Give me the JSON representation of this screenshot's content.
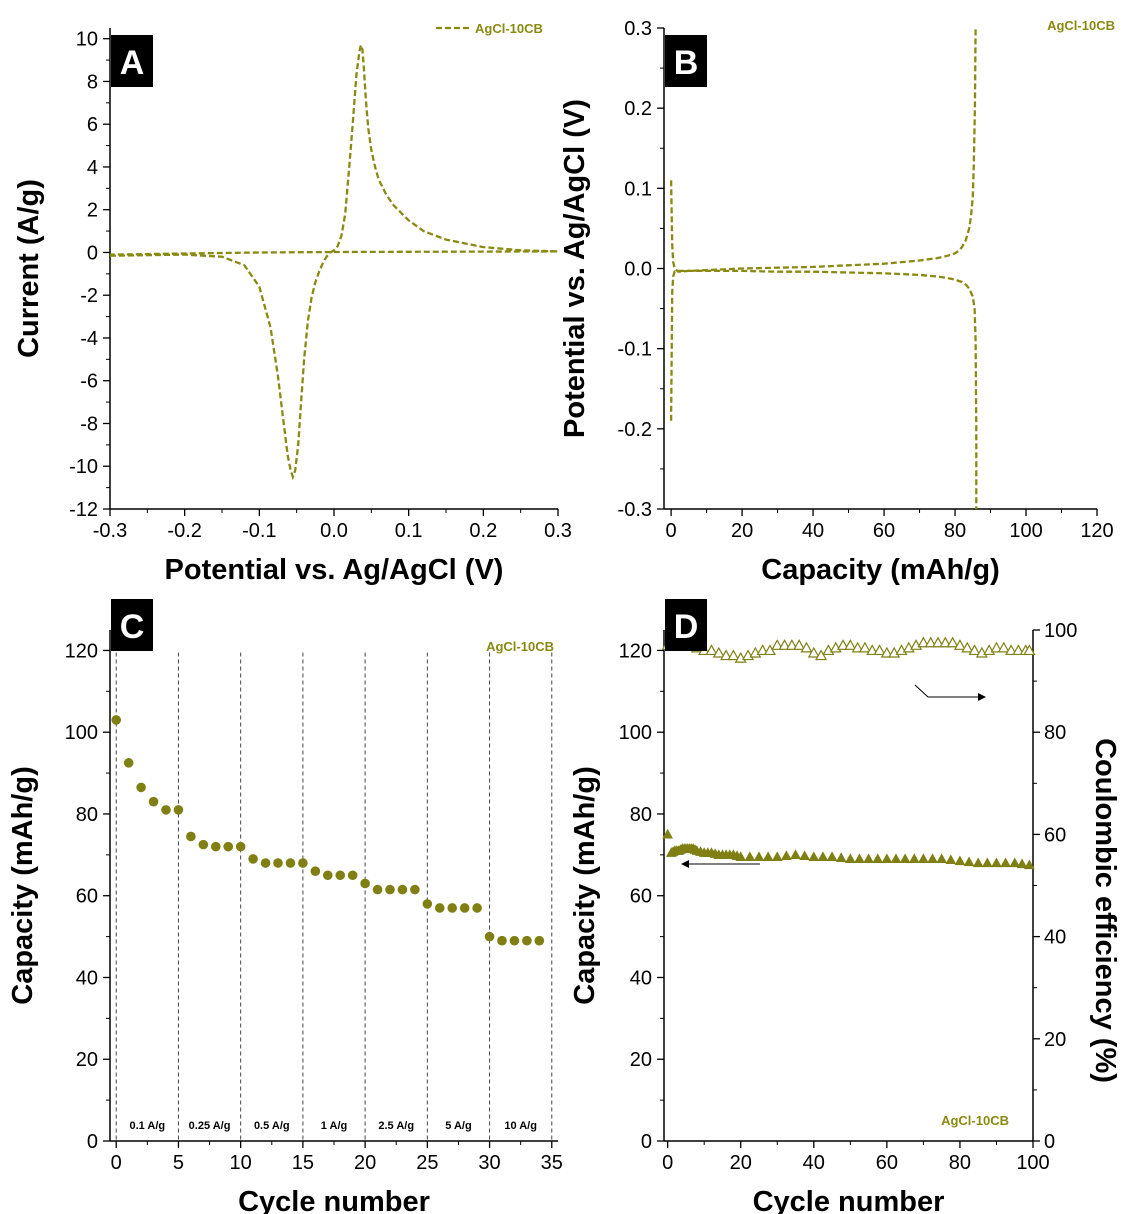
{
  "colors": {
    "series": "#8a8a12",
    "marker": "#7f7f14",
    "axis": "#000000",
    "panel_label_bg": "#000000"
  },
  "chart_data": [
    {
      "panel": "A",
      "type": "line",
      "xlabel": "Potential vs. Ag/AgCl (V)",
      "ylabel": "Current (A/g)",
      "xlim": [
        -0.3,
        0.3
      ],
      "ylim": [
        -12,
        10.5
      ],
      "xticks": [
        -0.3,
        -0.2,
        -0.1,
        0.0,
        0.1,
        0.2,
        0.3
      ],
      "xtick_labels": [
        "-0.3",
        "-0.2",
        "-0.1",
        "0.0",
        "0.1",
        "0.2",
        "0.3"
      ],
      "yticks": [
        -12,
        -10,
        -8,
        -6,
        -4,
        -2,
        0,
        2,
        4,
        6,
        8,
        10
      ],
      "ytick_labels": [
        "-12",
        "-10",
        "-8",
        "-6",
        "-4",
        "-2",
        "0",
        "2",
        "4",
        "6",
        "8",
        "10"
      ],
      "legend": "top-right",
      "series": [
        {
          "name": "AgCl-10CB",
          "style": "dashed",
          "x": [
            -0.3,
            -0.2,
            -0.15,
            -0.12,
            -0.1,
            -0.085,
            -0.075,
            -0.068,
            -0.062,
            -0.058,
            -0.055,
            -0.052,
            -0.048,
            -0.044,
            -0.04,
            -0.035,
            -0.03,
            -0.025,
            -0.02,
            -0.015,
            -0.01,
            -0.005,
            0.0,
            0.005,
            0.01,
            0.015,
            0.02,
            0.025,
            0.03,
            0.034,
            0.036,
            0.038,
            0.04,
            0.043,
            0.046,
            0.05,
            0.055,
            0.06,
            0.07,
            0.08,
            0.1,
            0.12,
            0.15,
            0.2,
            0.25,
            0.3,
            0.2,
            0.1,
            0.0,
            -0.1,
            -0.2,
            -0.3
          ],
          "y": [
            -0.15,
            -0.1,
            -0.2,
            -0.6,
            -1.6,
            -3.5,
            -5.8,
            -7.8,
            -9.5,
            -10.2,
            -10.5,
            -10.2,
            -9.0,
            -7.0,
            -5.0,
            -3.2,
            -2.1,
            -1.4,
            -0.9,
            -0.5,
            -0.2,
            0.0,
            0.1,
            0.3,
            0.8,
            1.8,
            3.8,
            6.0,
            8.3,
            9.4,
            9.7,
            9.5,
            8.6,
            7.0,
            5.8,
            4.8,
            4.0,
            3.4,
            2.7,
            2.2,
            1.5,
            1.0,
            0.6,
            0.25,
            0.1,
            0.05,
            0.04,
            0.03,
            0.02,
            0.0,
            -0.05,
            -0.1
          ]
        }
      ]
    },
    {
      "panel": "B",
      "type": "line",
      "xlabel": "Capacity (mAh/g)",
      "ylabel": "Potential vs. Ag/AgCl (V)",
      "xlim": [
        -2,
        120
      ],
      "ylim": [
        -0.3,
        0.3
      ],
      "xticks": [
        0,
        20,
        40,
        60,
        80,
        100,
        120
      ],
      "xtick_labels": [
        "0",
        "20",
        "40",
        "60",
        "80",
        "100",
        "120"
      ],
      "yticks": [
        -0.3,
        -0.2,
        -0.1,
        0.0,
        0.1,
        0.2,
        0.3
      ],
      "ytick_labels": [
        "-0.3",
        "-0.2",
        "-0.1",
        "0.0",
        "0.1",
        "0.2",
        "0.3"
      ],
      "legend": "top-right",
      "series": [
        {
          "name": "AgCl-10CB",
          "style": "dashed",
          "x": [
            0,
            0.3,
            0.6,
            1.0,
            2.0,
            5,
            10,
            20,
            30,
            40,
            50,
            60,
            65,
            70,
            75,
            78,
            80,
            81,
            82,
            83,
            84,
            84.5,
            85,
            85.3,
            85.6,
            85.8
          ],
          "y": [
            0.11,
            0.03,
            0.008,
            0.0,
            -0.004,
            -0.003,
            -0.002,
            0.0,
            0.001,
            0.002,
            0.004,
            0.006,
            0.008,
            0.01,
            0.013,
            0.016,
            0.019,
            0.022,
            0.027,
            0.035,
            0.05,
            0.065,
            0.09,
            0.13,
            0.2,
            0.3
          ]
        },
        {
          "name": "AgCl-10CB",
          "style": "dashed",
          "x": [
            0,
            0.3,
            0.6,
            1.0,
            2.0,
            5,
            10,
            20,
            30,
            40,
            50,
            60,
            65,
            70,
            75,
            78,
            80,
            82,
            83,
            84,
            85,
            85.5,
            85.8,
            86.0,
            86.0
          ],
          "y": [
            -0.19,
            -0.03,
            -0.01,
            -0.004,
            -0.003,
            -0.003,
            -0.003,
            -0.003,
            -0.004,
            -0.004,
            -0.005,
            -0.006,
            -0.007,
            -0.008,
            -0.01,
            -0.012,
            -0.014,
            -0.017,
            -0.02,
            -0.025,
            -0.035,
            -0.05,
            -0.09,
            -0.2,
            -0.3
          ]
        }
      ]
    },
    {
      "panel": "C",
      "type": "scatter",
      "xlabel": "Cycle number",
      "ylabel": "Capacity (mAh/g)",
      "xlim": [
        -0.5,
        35.5
      ],
      "ylim": [
        0,
        125
      ],
      "xticks": [
        0,
        5,
        10,
        15,
        20,
        25,
        30,
        35
      ],
      "xtick_labels": [
        "0",
        "5",
        "10",
        "15",
        "20",
        "25",
        "30",
        "35"
      ],
      "yticks": [
        0,
        20,
        40,
        60,
        80,
        100,
        120
      ],
      "ytick_labels": [
        "0",
        "20",
        "40",
        "60",
        "80",
        "100",
        "120"
      ],
      "legend": "top-right",
      "legend_text": "AgCl-10CB",
      "dividers": [
        0,
        5,
        10,
        15,
        20,
        25,
        30,
        35
      ],
      "segments": [
        {
          "label": "0.1 A/g",
          "x": 2.5
        },
        {
          "label": "0.25 A/g",
          "x": 7.5
        },
        {
          "label": "0.5 A/g",
          "x": 12.5
        },
        {
          "label": "1 A/g",
          "x": 17.5
        },
        {
          "label": "2.5 A/g",
          "x": 22.5
        },
        {
          "label": "5 A/g",
          "x": 27.5
        },
        {
          "label": "10 A/g",
          "x": 32.5
        }
      ],
      "series": [
        {
          "name": "AgCl-10CB",
          "x": [
            0,
            1,
            2,
            3,
            4,
            5,
            6,
            7,
            8,
            9,
            10,
            11,
            12,
            13,
            14,
            15,
            16,
            17,
            18,
            19,
            20,
            21,
            22,
            23,
            24,
            25,
            26,
            27,
            28,
            29,
            30,
            31,
            32,
            33,
            34
          ],
          "y": [
            103,
            92.5,
            86.5,
            83,
            81,
            81,
            74.5,
            72.5,
            72,
            72,
            72,
            69,
            68,
            68,
            68,
            68,
            66,
            65,
            65,
            65,
            63,
            61.5,
            61.5,
            61.5,
            61.5,
            58,
            57,
            57,
            57,
            57,
            50,
            49,
            49,
            49,
            49
          ]
        }
      ]
    },
    {
      "panel": "D",
      "type": "scatter",
      "xlabel": "Cycle number",
      "ylabel": "Capacity (mAh/g)",
      "y2label": "Coulombic efficiency (%)",
      "xlim": [
        -1,
        100
      ],
      "ylim": [
        0,
        125
      ],
      "y2lim": [
        0,
        100
      ],
      "xticks": [
        0,
        20,
        40,
        60,
        80,
        100
      ],
      "xtick_labels": [
        "0",
        "20",
        "40",
        "60",
        "80",
        "100"
      ],
      "yticks": [
        0,
        20,
        40,
        60,
        80,
        100,
        120
      ],
      "ytick_labels": [
        "0",
        "20",
        "40",
        "60",
        "80",
        "100",
        "120"
      ],
      "y2ticks": [
        0,
        20,
        40,
        60,
        80,
        100
      ],
      "y2tick_labels": [
        "0",
        "20",
        "40",
        "60",
        "80",
        "100"
      ],
      "legend": "bottom-right",
      "legend_text": "AgCl-10CB",
      "series": [
        {
          "name": "AgCl-10CB",
          "axis": "left",
          "marker": "filled-triangle",
          "x": [
            0,
            1,
            2,
            3,
            4,
            5,
            6,
            7,
            8,
            10,
            12,
            14,
            16,
            18,
            20,
            25,
            30,
            35,
            40,
            45,
            50,
            55,
            60,
            65,
            70,
            75,
            80,
            85,
            90,
            95,
            99
          ],
          "y": [
            75,
            70.5,
            71,
            71,
            71.5,
            71.5,
            71.5,
            71.5,
            71,
            70.5,
            70.5,
            70,
            70,
            70,
            69.5,
            69.5,
            69.5,
            70,
            69.5,
            69.5,
            69,
            69,
            69,
            69,
            69,
            69,
            68.5,
            68,
            68,
            68,
            67.5
          ]
        },
        {
          "name": "AgCl-10CB",
          "axis": "right",
          "marker": "open-triangle",
          "x": [
            0,
            1,
            2,
            3,
            4,
            5,
            6,
            8,
            10,
            12,
            14,
            16,
            18,
            20,
            22,
            24,
            26,
            28,
            30,
            32,
            34,
            36,
            38,
            40,
            42,
            44,
            46,
            48,
            50,
            52,
            54,
            56,
            58,
            60,
            62,
            64,
            66,
            68,
            70,
            72,
            74,
            76,
            78,
            80,
            82,
            84,
            86,
            88,
            90,
            92,
            94,
            96,
            98,
            99
          ],
          "y": [
            97,
            97.5,
            98,
            97.5,
            98,
            97.5,
            97,
            96.5,
            96,
            96,
            95.5,
            95,
            95,
            94.5,
            95,
            95.5,
            96,
            96,
            97,
            97,
            97,
            97,
            96.5,
            95.5,
            95,
            96,
            96.5,
            97,
            97,
            96.5,
            96.5,
            96,
            96,
            95.5,
            95.5,
            96,
            96.5,
            97,
            97.5,
            97.5,
            97.5,
            97.5,
            97.5,
            97,
            96.5,
            96,
            95.5,
            96,
            96.5,
            96.5,
            96,
            96,
            96,
            96
          ]
        }
      ]
    }
  ]
}
